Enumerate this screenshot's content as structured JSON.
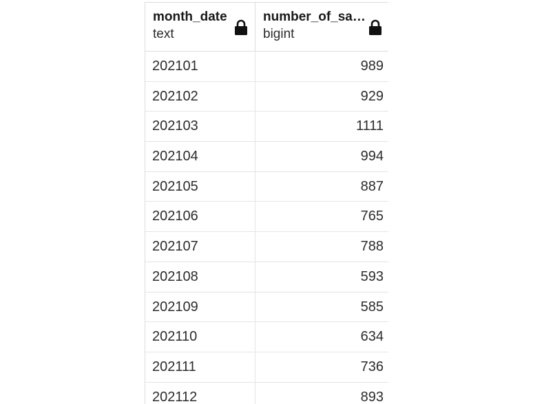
{
  "columns": [
    {
      "name": "month_date",
      "type": "text",
      "icon": "lock-icon"
    },
    {
      "name": "number_of_sales",
      "type": "bigint",
      "icon": "lock-icon"
    }
  ],
  "rows": [
    [
      "202101",
      "989"
    ],
    [
      "202102",
      "929"
    ],
    [
      "202103",
      "1111"
    ],
    [
      "202104",
      "994"
    ],
    [
      "202105",
      "887"
    ],
    [
      "202106",
      "765"
    ],
    [
      "202107",
      "788"
    ],
    [
      "202108",
      "593"
    ],
    [
      "202109",
      "585"
    ],
    [
      "202110",
      "634"
    ],
    [
      "202111",
      "736"
    ],
    [
      "202112",
      "893"
    ]
  ]
}
